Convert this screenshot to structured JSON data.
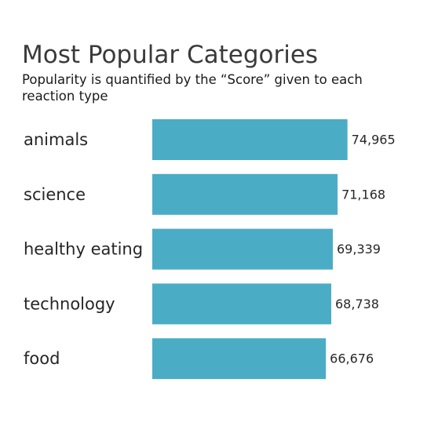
{
  "chart_data": {
    "type": "bar",
    "orientation": "horizontal",
    "title": "Most Popular Categories",
    "subtitle": "Popularity is quantified by the “Score” given to each reaction type",
    "categories": [
      "animals",
      "science",
      "healthy eating",
      "technology",
      "food"
    ],
    "values": [
      74965,
      71168,
      69339,
      68738,
      66676
    ],
    "value_labels": [
      "74,965",
      "71,168",
      "69,339",
      "68,738",
      "66,676"
    ],
    "xlim": [
      0,
      82000
    ],
    "xlabel": "",
    "ylabel": "",
    "grid": false,
    "legend": "none",
    "bar_color": "#4bacc6"
  }
}
